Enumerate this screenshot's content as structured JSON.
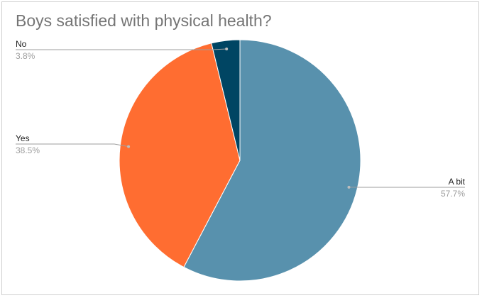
{
  "chart_data": {
    "type": "pie",
    "title": "Boys satisfied with physical health?",
    "slices": [
      {
        "label": "A bit",
        "value": 57.7,
        "percent_label": "57.7%",
        "color": "#5891ad"
      },
      {
        "label": "Yes",
        "value": 38.5,
        "percent_label": "38.5%",
        "color": "#ff6d31"
      },
      {
        "label": "No",
        "value": 3.8,
        "percent_label": "3.8%",
        "color": "#004563"
      }
    ],
    "legend": "none",
    "label_style": "leader-lines"
  }
}
